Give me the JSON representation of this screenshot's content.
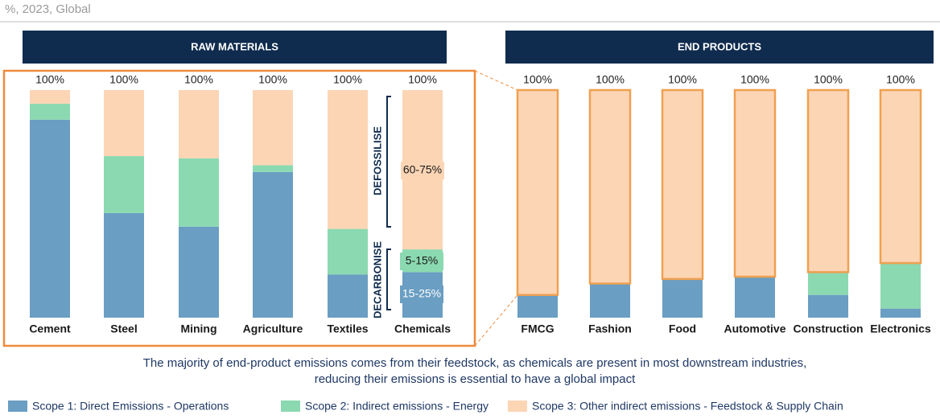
{
  "subtitle": "%, 2023, Global",
  "caption": [
    "The majority of end-product emissions comes from their feedstock, as chemicals are present in most downstream industries,",
    "reducing their emissions is essential to have a global impact"
  ],
  "chart_data": [
    {
      "type": "bar",
      "stacked": true,
      "title": "RAW MATERIALS",
      "categories": [
        "Cement",
        "Steel",
        "Mining",
        "Agriculture",
        "Textiles",
        "Chemicals"
      ],
      "series": [
        {
          "name": "Scope 1: Direct Emissions - Operations",
          "color": "#6a9ec2",
          "values": [
            87,
            46,
            40,
            64,
            19,
            20
          ]
        },
        {
          "name": "Scope 2: Indirect emissions - Energy",
          "color": "#8bd9b0",
          "values": [
            7,
            25,
            30,
            3,
            20,
            10
          ]
        },
        {
          "name": "Scope 3: Other indirect emissions - Feedstock & Supply Chain",
          "color": "#fcd5b5",
          "values": [
            6,
            29,
            30,
            33,
            61,
            70
          ]
        }
      ],
      "totals": [
        100,
        100,
        100,
        100,
        100,
        100
      ],
      "total_labels": [
        "100%",
        "100%",
        "100%",
        "100%",
        "100%",
        "100%"
      ],
      "ylim": [
        0,
        100
      ],
      "annotations": [
        "DEFOSSILISE",
        "DECARBONISE",
        "60-75%",
        "5-15%",
        "15-25%"
      ]
    },
    {
      "type": "bar",
      "stacked": true,
      "title": "END PRODUCTS",
      "categories": [
        "FMCG",
        "Fashion",
        "Food",
        "Automotive",
        "Construction",
        "Electronics"
      ],
      "series": [
        {
          "color": "#6a9ec2",
          "values": [
            10,
            15,
            17,
            18,
            10,
            4
          ]
        },
        {
          "color": "#8bd9b0",
          "values": [
            0,
            0,
            0,
            0,
            10,
            20
          ]
        },
        {
          "color": "#fcd5b5",
          "values": [
            90,
            85,
            83,
            82,
            80,
            76
          ]
        }
      ],
      "totals": [
        100,
        100,
        100,
        100,
        100,
        100
      ],
      "total_labels": [
        "100%",
        "100%",
        "100%",
        "100%",
        "100%",
        "100%"
      ],
      "ylim": [
        0,
        100
      ],
      "outline_color": "#f0a050"
    }
  ]
}
